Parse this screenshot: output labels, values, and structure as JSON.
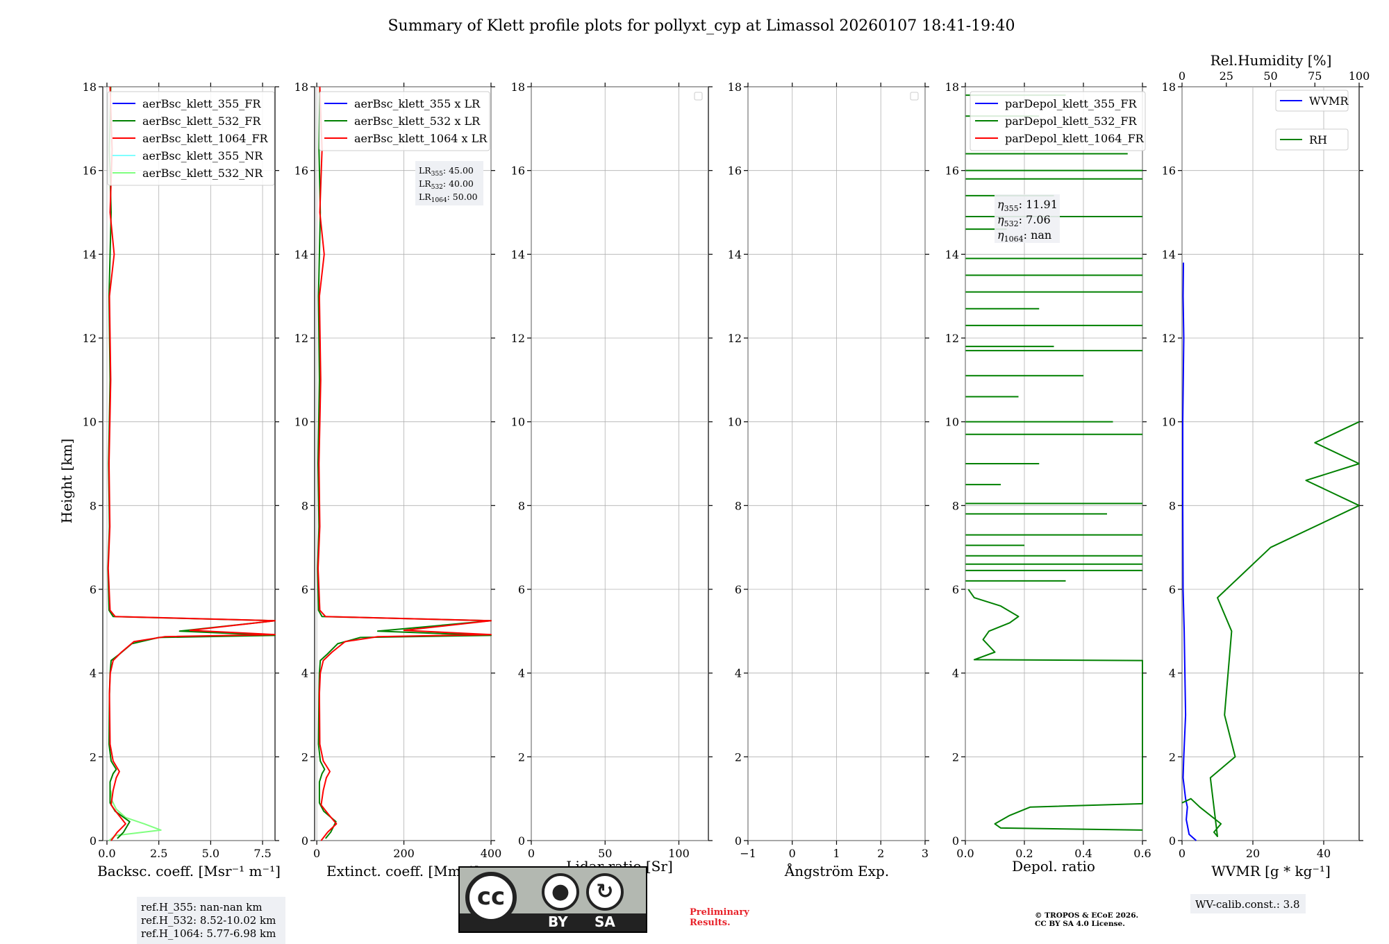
{
  "title": "Summary of Klett profile plots for pollyxt_cyp at Limassol 20260107 18:41-19:40",
  "colors": {
    "blue": "#0000ff",
    "green": "#008000",
    "red": "#ff0000",
    "cyan": "#7fffff",
    "lightgreen": "#7fff7f"
  },
  "chart_data": [
    {
      "type": "line",
      "id": "backscatter",
      "ylabel": "Height [km]",
      "xlabel": "Backsc. coeff. [Msr⁻¹ m⁻¹]",
      "xlim": [
        -0.2,
        8.1
      ],
      "ylim": [
        0,
        18
      ],
      "xticks": [
        0.0,
        2.5,
        5.0,
        7.5
      ],
      "xticklabels": [
        "0.0",
        "2.5",
        "5.0",
        "7.5"
      ],
      "yticks": [
        0,
        2,
        4,
        6,
        8,
        10,
        12,
        14,
        16,
        18
      ],
      "legend": [
        "aerBsc_klett_355_FR",
        "aerBsc_klett_532_FR",
        "aerBsc_klett_1064_FR",
        "aerBsc_klett_355_NR",
        "aerBsc_klett_532_NR"
      ],
      "legend_colors": [
        "#0000ff",
        "#008000",
        "#ff0000",
        "#7fffff",
        "#7fff7f"
      ],
      "series": [
        {
          "name": "aerBsc_klett_532_NR",
          "color": "#7fff7f",
          "points": [
            [
              0.1,
              0.0
            ],
            [
              0.4,
              0.12
            ],
            [
              2.6,
              0.25
            ],
            [
              1.8,
              0.4
            ],
            [
              0.9,
              0.55
            ],
            [
              0.45,
              0.75
            ],
            [
              0.25,
              0.95
            ],
            [
              0.18,
              1.2
            ]
          ]
        },
        {
          "name": "aerBsc_klett_532_FR",
          "color": "#008000",
          "points": [
            [
              0.5,
              0.05
            ],
            [
              0.8,
              0.2
            ],
            [
              1.1,
              0.45
            ],
            [
              0.4,
              0.7
            ],
            [
              0.15,
              0.9
            ],
            [
              0.15,
              1.4
            ],
            [
              0.3,
              1.6
            ],
            [
              0.45,
              1.7
            ],
            [
              0.2,
              1.9
            ],
            [
              0.1,
              2.3
            ],
            [
              0.12,
              3.5
            ],
            [
              0.15,
              4.0
            ],
            [
              0.2,
              4.3
            ],
            [
              0.6,
              4.45
            ],
            [
              1.2,
              4.7
            ],
            [
              2.5,
              4.85
            ],
            [
              8.1,
              4.9
            ],
            [
              3.5,
              5.0
            ],
            [
              8.1,
              5.25
            ],
            [
              0.3,
              5.35
            ],
            [
              0.1,
              5.5
            ],
            [
              0.05,
              6.5
            ],
            [
              0.12,
              7.5
            ],
            [
              0.08,
              9.0
            ],
            [
              0.15,
              11.0
            ],
            [
              0.1,
              13.0
            ],
            [
              0.2,
              15.0
            ],
            [
              0.12,
              16.5
            ],
            [
              0.18,
              18.0
            ]
          ]
        },
        {
          "name": "aerBsc_klett_1064_FR",
          "color": "#ff0000",
          "points": [
            [
              0.2,
              0.0
            ],
            [
              0.5,
              0.2
            ],
            [
              0.9,
              0.4
            ],
            [
              0.5,
              0.65
            ],
            [
              0.2,
              0.85
            ],
            [
              0.3,
              1.2
            ],
            [
              0.45,
              1.5
            ],
            [
              0.6,
              1.65
            ],
            [
              0.3,
              1.9
            ],
            [
              0.15,
              2.3
            ],
            [
              0.12,
              3.5
            ],
            [
              0.16,
              4.0
            ],
            [
              0.3,
              4.3
            ],
            [
              0.7,
              4.5
            ],
            [
              1.3,
              4.75
            ],
            [
              2.8,
              4.87
            ],
            [
              8.1,
              4.92
            ],
            [
              4.0,
              5.02
            ],
            [
              8.1,
              5.25
            ],
            [
              0.4,
              5.35
            ],
            [
              0.15,
              5.5
            ],
            [
              0.06,
              6.5
            ],
            [
              0.14,
              7.5
            ],
            [
              0.1,
              9.0
            ],
            [
              0.18,
              11.0
            ],
            [
              0.12,
              13.0
            ],
            [
              0.35,
              14.0
            ],
            [
              0.15,
              15.0
            ],
            [
              0.25,
              16.5
            ],
            [
              0.15,
              18.0
            ]
          ]
        }
      ],
      "annotation": [
        "ref.H_355: nan-nan km",
        "ref.H_532: 8.52-10.02 km",
        "ref.H_1064: 5.77-6.98 km"
      ]
    },
    {
      "type": "line",
      "id": "extinction",
      "xlabel": "Extinct. coeff. [Mm⁻¹]",
      "xlim": [
        -5,
        400
      ],
      "ylim": [
        0,
        18
      ],
      "xticks": [
        0,
        200,
        400
      ],
      "xticklabels": [
        "0",
        "200",
        "400"
      ],
      "yticks": [
        0,
        2,
        4,
        6,
        8,
        10,
        12,
        14,
        16,
        18
      ],
      "legend": [
        "aerBsc_klett_355 x LR",
        "aerBsc_klett_532 x LR",
        "aerBsc_klett_1064 x LR"
      ],
      "legend_colors": [
        "#0000ff",
        "#008000",
        "#ff0000"
      ],
      "lr_labels": [
        "LR",
        "LR",
        "LR"
      ],
      "lr_subs": [
        "355",
        "532",
        "1064"
      ],
      "lr_values": [
        ": 45.00",
        ": 40.00",
        ": 50.00"
      ],
      "series": [
        {
          "name": "aerBsc_klett_532 x LR",
          "color": "#008000",
          "points": [
            [
              20,
              0.05
            ],
            [
              32,
              0.2
            ],
            [
              44,
              0.45
            ],
            [
              16,
              0.7
            ],
            [
              6,
              0.9
            ],
            [
              6,
              1.4
            ],
            [
              12,
              1.6
            ],
            [
              18,
              1.7
            ],
            [
              8,
              1.9
            ],
            [
              4,
              2.3
            ],
            [
              5,
              3.5
            ],
            [
              6,
              4.0
            ],
            [
              8,
              4.3
            ],
            [
              24,
              4.45
            ],
            [
              48,
              4.7
            ],
            [
              100,
              4.85
            ],
            [
              400,
              4.9
            ],
            [
              140,
              5.0
            ],
            [
              400,
              5.25
            ],
            [
              12,
              5.35
            ],
            [
              4,
              5.5
            ],
            [
              2,
              6.5
            ],
            [
              5,
              7.5
            ],
            [
              3,
              9.0
            ],
            [
              6,
              11.0
            ],
            [
              4,
              13.0
            ],
            [
              8,
              15.0
            ],
            [
              5,
              16.5
            ],
            [
              7,
              18.0
            ]
          ]
        },
        {
          "name": "aerBsc_klett_1064 x LR",
          "color": "#ff0000",
          "points": [
            [
              10,
              0.0
            ],
            [
              25,
              0.2
            ],
            [
              45,
              0.4
            ],
            [
              25,
              0.65
            ],
            [
              10,
              0.85
            ],
            [
              15,
              1.2
            ],
            [
              22,
              1.5
            ],
            [
              30,
              1.65
            ],
            [
              15,
              1.9
            ],
            [
              7,
              2.3
            ],
            [
              6,
              3.5
            ],
            [
              8,
              4.0
            ],
            [
              15,
              4.3
            ],
            [
              35,
              4.5
            ],
            [
              65,
              4.75
            ],
            [
              140,
              4.87
            ],
            [
              400,
              4.92
            ],
            [
              200,
              5.02
            ],
            [
              400,
              5.25
            ],
            [
              20,
              5.35
            ],
            [
              7,
              5.5
            ],
            [
              3,
              6.5
            ],
            [
              7,
              7.5
            ],
            [
              5,
              9.0
            ],
            [
              9,
              11.0
            ],
            [
              6,
              13.0
            ],
            [
              17,
              14.0
            ],
            [
              7,
              15.0
            ],
            [
              12,
              16.5
            ],
            [
              7,
              18.0
            ]
          ]
        }
      ]
    },
    {
      "type": "line",
      "id": "lidar-ratio",
      "xlabel": "Lidar ratio [Sr]",
      "xlim": [
        0,
        120
      ],
      "ylim": [
        0,
        18
      ],
      "xticks": [
        0,
        50,
        100
      ],
      "xticklabels": [
        "0",
        "50",
        "100"
      ],
      "yticks": [
        0,
        2,
        4,
        6,
        8,
        10,
        12,
        14,
        16,
        18
      ],
      "series": []
    },
    {
      "type": "line",
      "id": "angstrom",
      "xlabel": "Ångström Exp.",
      "xlim": [
        -1,
        3
      ],
      "ylim": [
        0,
        18
      ],
      "xticks": [
        -1,
        0,
        1,
        2,
        3
      ],
      "xticklabels": [
        "−1",
        "0",
        "1",
        "2",
        "3"
      ],
      "yticks": [
        0,
        2,
        4,
        6,
        8,
        10,
        12,
        14,
        16,
        18
      ],
      "series": []
    },
    {
      "type": "line",
      "id": "depol",
      "xlabel": "Depol. ratio",
      "xlim": [
        0,
        0.6
      ],
      "ylim": [
        0,
        18
      ],
      "xticks": [
        0.0,
        0.2,
        0.4,
        0.6
      ],
      "xticklabels": [
        "0.0",
        "0.2",
        "0.4",
        "0.6"
      ],
      "yticks": [
        0,
        2,
        4,
        6,
        8,
        10,
        12,
        14,
        16,
        18
      ],
      "legend": [
        "parDepol_klett_355_FR",
        "parDepol_klett_532_FR",
        "parDepol_klett_1064_FR"
      ],
      "legend_colors": [
        "#0000ff",
        "#008000",
        "#ff0000"
      ],
      "eta_labels": [
        "η",
        "η",
        "η"
      ],
      "eta_subs": [
        "355",
        "532",
        "1064"
      ],
      "eta_values": [
        ": 11.91",
        ": 7.06",
        ": nan"
      ],
      "series": [
        {
          "name": "parDepol_klett_532_FR",
          "color": "#008000",
          "points": [
            [
              0.6,
              0.25
            ],
            [
              0.12,
              0.3
            ],
            [
              0.1,
              0.4
            ],
            [
              0.15,
              0.6
            ],
            [
              0.22,
              0.8
            ],
            [
              0.6,
              0.88
            ],
            [
              0.6,
              1.5
            ],
            [
              0.6,
              1.82
            ],
            [
              0.6,
              4.3
            ],
            [
              0.03,
              4.32
            ],
            [
              0.1,
              4.5
            ],
            [
              0.06,
              4.8
            ],
            [
              0.08,
              5.0
            ],
            [
              0.15,
              5.2
            ],
            [
              0.18,
              5.35
            ],
            [
              0.12,
              5.6
            ],
            [
              0.03,
              5.8
            ],
            [
              0.01,
              6.0
            ]
          ]
        }
      ],
      "spikes": [
        [
          6.2,
          0.34
        ],
        [
          6.45,
          0.6
        ],
        [
          6.6,
          0.6
        ],
        [
          6.8,
          0.6
        ],
        [
          7.05,
          0.2
        ],
        [
          7.3,
          0.6
        ],
        [
          7.8,
          0.48
        ],
        [
          8.05,
          0.6
        ],
        [
          8.5,
          0.12
        ],
        [
          9.0,
          0.25
        ],
        [
          9.7,
          0.6
        ],
        [
          10.0,
          0.5
        ],
        [
          10.6,
          0.18
        ],
        [
          11.1,
          0.4
        ],
        [
          11.7,
          0.6
        ],
        [
          11.8,
          0.3
        ],
        [
          12.3,
          0.6
        ],
        [
          12.7,
          0.25
        ],
        [
          13.1,
          0.6
        ],
        [
          13.5,
          0.6
        ],
        [
          13.9,
          0.6
        ],
        [
          14.6,
          0.14
        ],
        [
          14.9,
          0.6
        ],
        [
          15.4,
          0.3
        ],
        [
          15.8,
          0.6
        ],
        [
          16.0,
          0.6
        ],
        [
          16.4,
          0.55
        ],
        [
          17.3,
          0.25
        ],
        [
          17.8,
          0.34
        ]
      ]
    },
    {
      "type": "line",
      "id": "wvmr",
      "xlabel": "WVMR [g * kg⁻¹]",
      "x2label": "Rel.Humidity [%]",
      "xlim": [
        0,
        50
      ],
      "x2lim": [
        0,
        100
      ],
      "ylim": [
        0,
        18
      ],
      "xticks": [
        0,
        20,
        40
      ],
      "xticklabels": [
        "0",
        "20",
        "40"
      ],
      "x2ticks": [
        0,
        25,
        50,
        75,
        100
      ],
      "x2ticklabels": [
        "0",
        "25",
        "50",
        "75",
        "100"
      ],
      "yticks": [
        0,
        2,
        4,
        6,
        8,
        10,
        12,
        14,
        16,
        18
      ],
      "legend": [
        "WVMR",
        "RH"
      ],
      "legend_colors": [
        "#0000ff",
        "#008000"
      ],
      "series": [
        {
          "name": "WVMR",
          "axis": "bottom",
          "color": "#0000ff",
          "points": [
            [
              4,
              0.0
            ],
            [
              2,
              0.15
            ],
            [
              1.2,
              0.5
            ],
            [
              1.5,
              0.8
            ],
            [
              1.0,
              1.0
            ],
            [
              0.3,
              1.5
            ],
            [
              0.5,
              2.0
            ],
            [
              1.0,
              3.0
            ],
            [
              0.6,
              5.0
            ],
            [
              0.3,
              6.0
            ],
            [
              0.2,
              8.0
            ],
            [
              0.2,
              10.0
            ],
            [
              0.5,
              12.0
            ],
            [
              0.3,
              13.0
            ],
            [
              0.4,
              13.8
            ]
          ]
        },
        {
          "name": "RH",
          "axis": "top",
          "color": "#008000",
          "points": [
            [
              0,
              0.9
            ],
            [
              5,
              1.0
            ],
            [
              10,
              0.8
            ],
            [
              22,
              0.4
            ],
            [
              18,
              0.2
            ],
            [
              20,
              0.1
            ],
            [
              16,
              1.5
            ],
            [
              30,
              2.0
            ],
            [
              24,
              3.0
            ],
            [
              26,
              4.0
            ],
            [
              28,
              5.0
            ],
            [
              20,
              5.8
            ],
            [
              35,
              6.4
            ],
            [
              50,
              7.0
            ],
            [
              80,
              7.6
            ],
            [
              100,
              8.0
            ],
            [
              70,
              8.6
            ],
            [
              100,
              9.0
            ],
            [
              75,
              9.5
            ],
            [
              100,
              10.0
            ]
          ]
        }
      ],
      "annotation": "WV-calib.const.: 3.8"
    }
  ],
  "license": {
    "cc": "cc",
    "by": "BY",
    "sa": "SA",
    "preliminary": [
      "Preliminary",
      "Results."
    ],
    "copyright": [
      "© TROPOS & ECoE 2026.",
      "CC BY SA 4.0 License."
    ]
  }
}
